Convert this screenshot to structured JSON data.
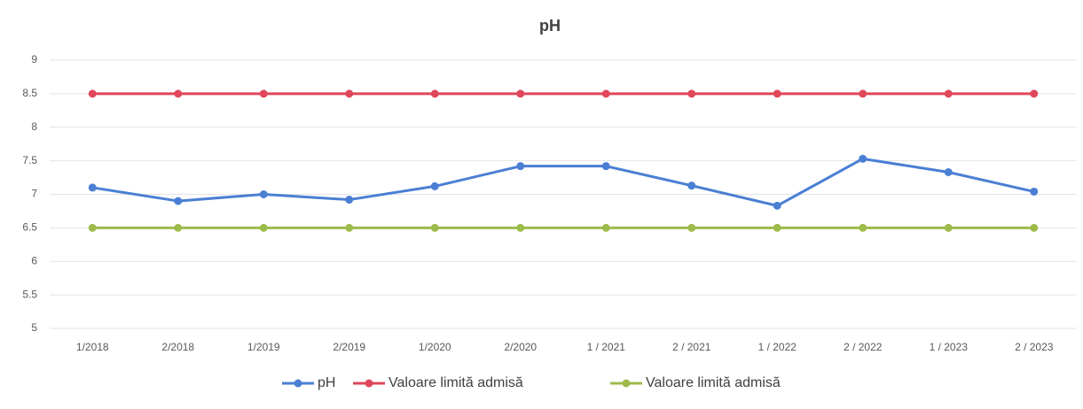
{
  "chart_data": {
    "type": "line",
    "title": "pH",
    "categories": [
      "1/2018",
      "2/2018",
      "1/2019",
      "2/2019",
      "1/2020",
      "2/2020",
      "1 / 2021",
      "2 / 2021",
      "1 / 2022",
      "2 / 2022",
      "1 / 2023",
      "2 / 2023"
    ],
    "series": [
      {
        "name": "pH",
        "color": "#4a7fd4",
        "values": [
          7.1,
          6.9,
          7.0,
          6.92,
          7.12,
          7.42,
          7.42,
          7.13,
          6.83,
          7.53,
          7.33,
          7.04
        ]
      },
      {
        "name": "Valoare limită admisă",
        "color": "#e0475a",
        "values": [
          8.5,
          8.5,
          8.5,
          8.5,
          8.5,
          8.5,
          8.5,
          8.5,
          8.5,
          8.5,
          8.5,
          8.5
        ]
      },
      {
        "name": "Valoare limită admisă",
        "color": "#9dbb4a",
        "values": [
          6.5,
          6.5,
          6.5,
          6.5,
          6.5,
          6.5,
          6.5,
          6.5,
          6.5,
          6.5,
          6.5,
          6.5
        ]
      }
    ],
    "ylim": [
      5,
      9
    ],
    "yticks": [
      5,
      5.5,
      6,
      6.5,
      7,
      7.5,
      8,
      8.5,
      9
    ],
    "grid": true,
    "legend": "bottom"
  }
}
